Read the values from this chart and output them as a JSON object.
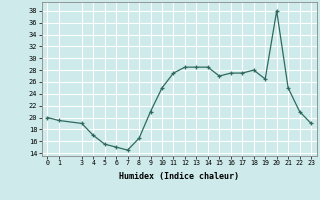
{
  "x": [
    0,
    1,
    3,
    4,
    5,
    6,
    7,
    8,
    9,
    10,
    11,
    12,
    13,
    14,
    15,
    16,
    17,
    18,
    19,
    20,
    21,
    22,
    23
  ],
  "y": [
    20,
    19.5,
    19,
    17,
    15.5,
    15,
    14.5,
    16.5,
    21,
    25,
    27.5,
    28.5,
    28.5,
    28.5,
    27,
    27.5,
    27.5,
    28,
    26.5,
    38,
    25,
    21,
    19
  ],
  "xlabel": "Humidex (Indice chaleur)",
  "xlim": [
    -0.5,
    23.5
  ],
  "ylim": [
    13.5,
    39.5
  ],
  "yticks": [
    14,
    16,
    18,
    20,
    22,
    24,
    26,
    28,
    30,
    32,
    34,
    36,
    38
  ],
  "xticks": [
    0,
    1,
    3,
    4,
    5,
    6,
    7,
    8,
    9,
    10,
    11,
    12,
    13,
    14,
    15,
    16,
    17,
    18,
    19,
    20,
    21,
    22,
    23
  ],
  "line_color": "#2e6b5e",
  "marker": "+",
  "marker_color": "#2e6b5e",
  "bg_color": "#ceeaea",
  "grid_color": "#ffffff",
  "spine_color": "#888888"
}
